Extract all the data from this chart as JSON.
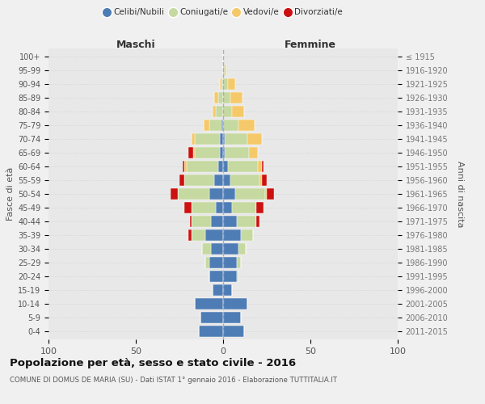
{
  "age_groups": [
    "100+",
    "95-99",
    "90-94",
    "85-89",
    "80-84",
    "75-79",
    "70-74",
    "65-69",
    "60-64",
    "55-59",
    "50-54",
    "45-49",
    "40-44",
    "35-39",
    "30-34",
    "25-29",
    "20-24",
    "15-19",
    "10-14",
    "5-9",
    "0-4"
  ],
  "birth_years": [
    "≤ 1915",
    "1916-1920",
    "1921-1925",
    "1926-1930",
    "1931-1935",
    "1936-1940",
    "1941-1945",
    "1946-1950",
    "1951-1955",
    "1956-1960",
    "1961-1965",
    "1966-1970",
    "1971-1975",
    "1976-1980",
    "1981-1985",
    "1986-1990",
    "1991-1995",
    "1996-2000",
    "2001-2005",
    "2006-2010",
    "2011-2015"
  ],
  "male": {
    "celibi": [
      0,
      0,
      0,
      0,
      0,
      1,
      2,
      2,
      3,
      5,
      8,
      4,
      7,
      10,
      7,
      8,
      8,
      6,
      16,
      13,
      14
    ],
    "coniugati": [
      0,
      0,
      1,
      3,
      4,
      7,
      14,
      14,
      18,
      17,
      18,
      14,
      11,
      8,
      5,
      2,
      0,
      0,
      0,
      0,
      0
    ],
    "vedovi": [
      0,
      0,
      1,
      2,
      2,
      3,
      2,
      1,
      1,
      0,
      0,
      0,
      0,
      0,
      0,
      0,
      0,
      0,
      0,
      0,
      0
    ],
    "divorziati": [
      0,
      0,
      0,
      0,
      0,
      0,
      0,
      3,
      1,
      3,
      4,
      4,
      1,
      2,
      0,
      0,
      0,
      0,
      0,
      0,
      0
    ]
  },
  "female": {
    "nubili": [
      0,
      0,
      0,
      0,
      0,
      0,
      1,
      1,
      3,
      4,
      7,
      5,
      8,
      10,
      9,
      8,
      8,
      5,
      14,
      10,
      12
    ],
    "coniugate": [
      0,
      1,
      3,
      4,
      5,
      9,
      13,
      14,
      17,
      17,
      17,
      14,
      11,
      7,
      4,
      2,
      1,
      0,
      0,
      0,
      0
    ],
    "vedove": [
      0,
      1,
      4,
      7,
      7,
      9,
      8,
      5,
      2,
      1,
      1,
      0,
      0,
      0,
      0,
      0,
      0,
      0,
      0,
      0,
      0
    ],
    "divorziate": [
      0,
      0,
      0,
      0,
      0,
      0,
      0,
      0,
      1,
      3,
      4,
      4,
      2,
      0,
      0,
      0,
      0,
      0,
      0,
      0,
      0
    ]
  },
  "colors": {
    "celibi": "#4e7db5",
    "coniugati": "#c5d9a0",
    "vedovi": "#f5c96a",
    "divorziati": "#cc1111"
  },
  "xlim": 100,
  "title": "Popolazione per età, sesso e stato civile - 2016",
  "subtitle": "COMUNE DI DOMUS DE MARIA (SU) - Dati ISTAT 1° gennaio 2016 - Elaborazione TUTTITALIA.IT",
  "ylabel_left": "Fasce di età",
  "ylabel_right": "Anni di nascita",
  "legend_labels": [
    "Celibi/Nubili",
    "Coniugati/e",
    "Vedovi/e",
    "Divorziati/e"
  ],
  "xlabel_left": "Maschi",
  "xlabel_right": "Femmine",
  "bg_color": "#f0f0f0",
  "plot_bg": "#e8e8e8"
}
